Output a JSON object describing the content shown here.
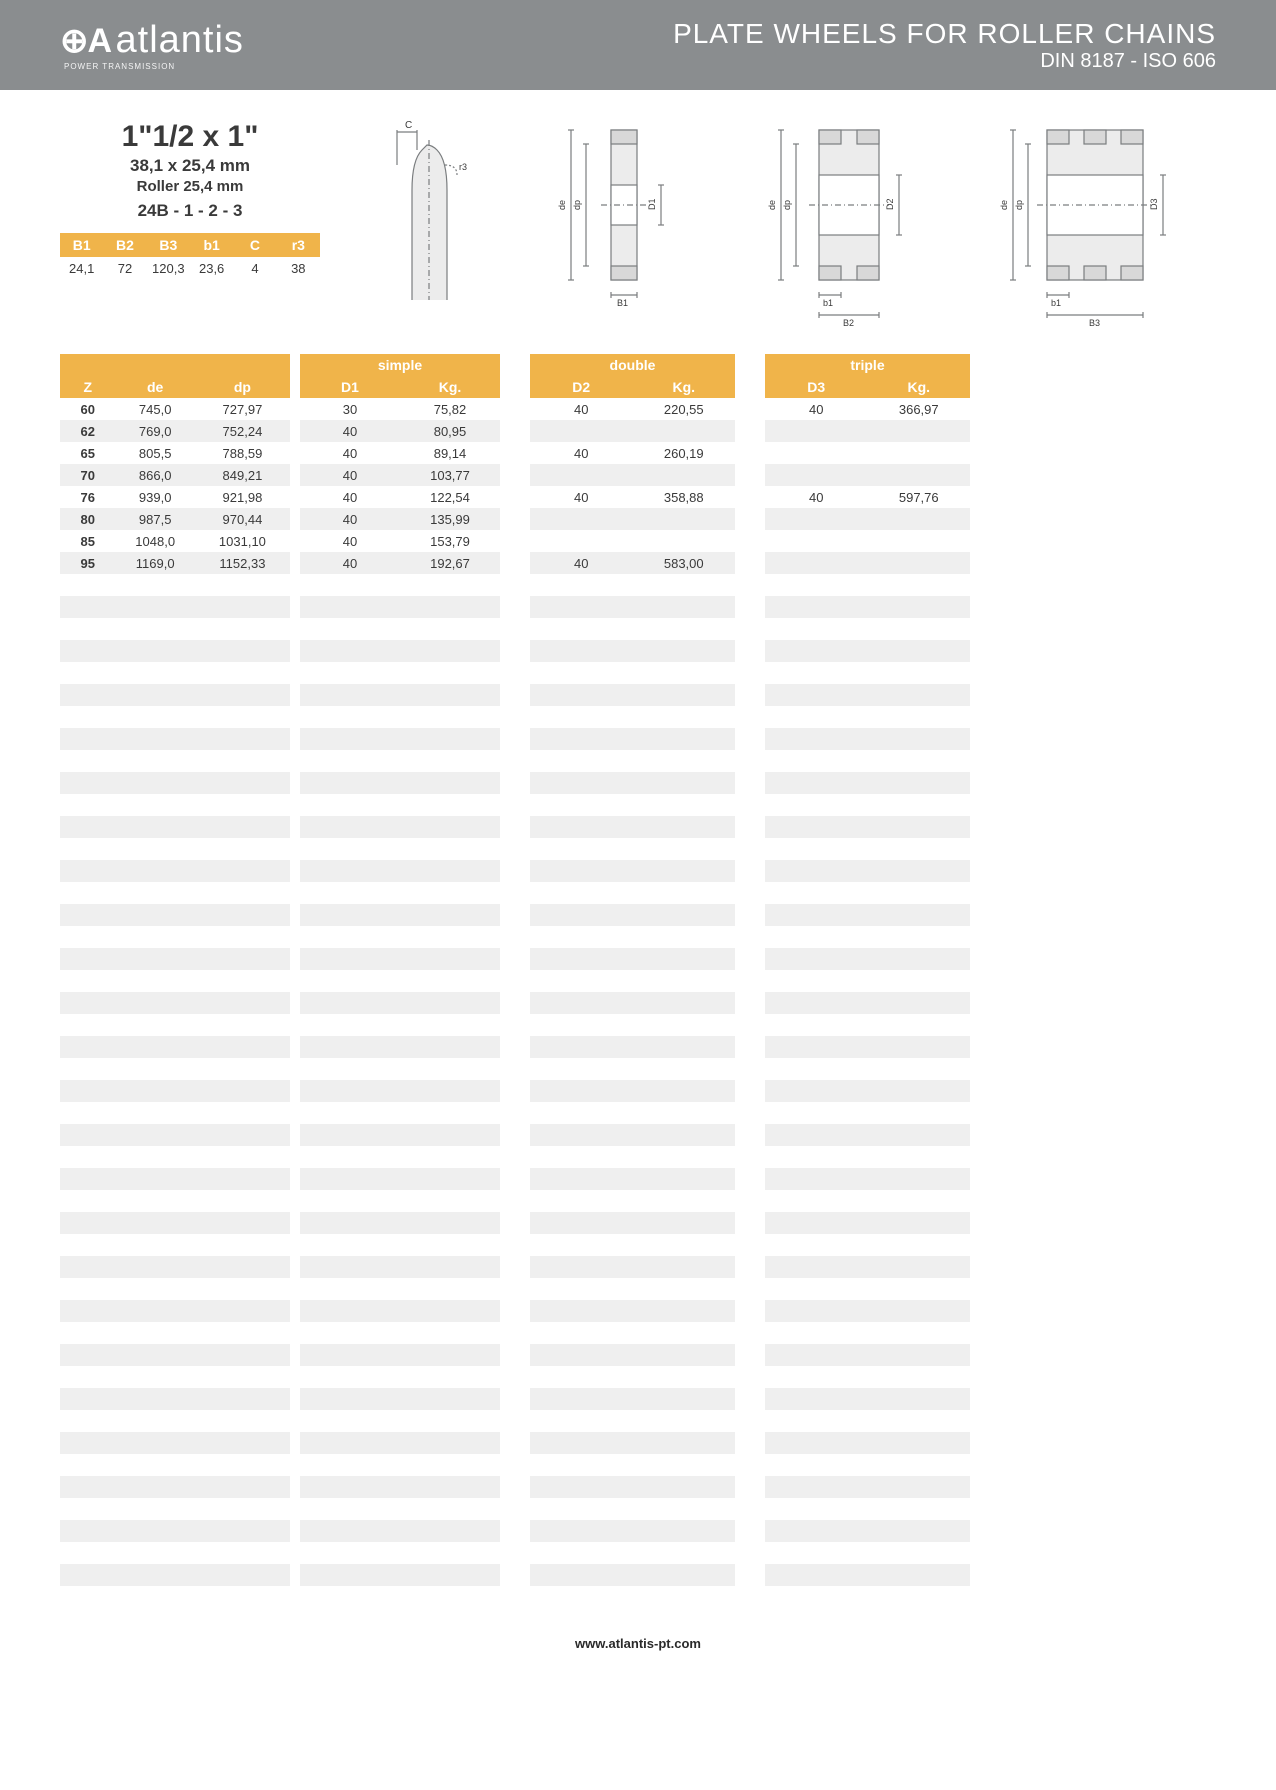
{
  "banner": {
    "logo_mark": "⊕A",
    "logo_text": "atlantis",
    "logo_sub": "POWER TRANSMISSION",
    "title": "PLATE WHEELS FOR ROLLER CHAINS",
    "subtitle": "DIN 8187 - ISO 606"
  },
  "spec": {
    "size": "1\"1/2 x 1\"",
    "mm": "38,1 x 25,4 mm",
    "roller": "Roller 25,4 mm",
    "code": "24B - 1 - 2 - 3"
  },
  "small_table": {
    "headers": [
      "B1",
      "B2",
      "B3",
      "b1",
      "C",
      "r3"
    ],
    "row": [
      "24,1",
      "72",
      "120,3",
      "23,6",
      "4",
      "38"
    ]
  },
  "diagram_labels": {
    "c": "C",
    "r3": "r3",
    "de": "de",
    "dp": "dp",
    "d1": "D1",
    "d2": "D2",
    "d3": "D3",
    "b1": "b1",
    "b2": "B2",
    "b3": "B3",
    "B1": "B1"
  },
  "colors": {
    "banner_bg": "#8a8d8f",
    "header_bg": "#f0b44a",
    "alt_row": "#efefef",
    "diagram_stroke": "#7a7d7f",
    "text": "#3a3a3a"
  },
  "main_headers": {
    "z": "Z",
    "de": "de",
    "dp": "dp",
    "simple": "simple",
    "d1": "D1",
    "kg": "Kg.",
    "double": "double",
    "d2": "D2",
    "triple": "triple",
    "d3": "D3"
  },
  "rows": [
    {
      "z": "60",
      "de": "745,0",
      "dp": "727,97",
      "d1": "30",
      "kg1": "75,82",
      "d2": "40",
      "kg2": "220,55",
      "d3": "40",
      "kg3": "366,97"
    },
    {
      "z": "62",
      "de": "769,0",
      "dp": "752,24",
      "d1": "40",
      "kg1": "80,95",
      "d2": "",
      "kg2": "",
      "d3": "",
      "kg3": ""
    },
    {
      "z": "65",
      "de": "805,5",
      "dp": "788,59",
      "d1": "40",
      "kg1": "89,14",
      "d2": "40",
      "kg2": "260,19",
      "d3": "",
      "kg3": ""
    },
    {
      "z": "70",
      "de": "866,0",
      "dp": "849,21",
      "d1": "40",
      "kg1": "103,77",
      "d2": "",
      "kg2": "",
      "d3": "",
      "kg3": ""
    },
    {
      "z": "76",
      "de": "939,0",
      "dp": "921,98",
      "d1": "40",
      "kg1": "122,54",
      "d2": "40",
      "kg2": "358,88",
      "d3": "40",
      "kg3": "597,76"
    },
    {
      "z": "80",
      "de": "987,5",
      "dp": "970,44",
      "d1": "40",
      "kg1": "135,99",
      "d2": "",
      "kg2": "",
      "d3": "",
      "kg3": ""
    },
    {
      "z": "85",
      "de": "1048,0",
      "dp": "1031,10",
      "d1": "40",
      "kg1": "153,79",
      "d2": "",
      "kg2": "",
      "d3": "",
      "kg3": ""
    },
    {
      "z": "95",
      "de": "1169,0",
      "dp": "1152,33",
      "d1": "40",
      "kg1": "192,67",
      "d2": "40",
      "kg2": "583,00",
      "d3": "",
      "kg3": ""
    }
  ],
  "empty_rows": 46,
  "footer": "www.atlantis-pt.com"
}
